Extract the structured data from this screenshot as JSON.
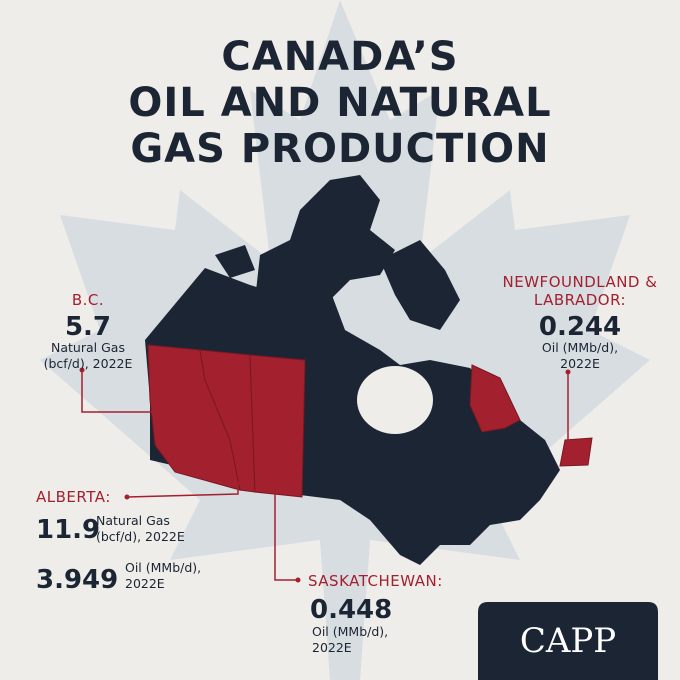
{
  "header": {
    "title_lines": [
      "CANADA’S",
      "OIL AND NATURAL",
      "GAS PRODUCTION"
    ]
  },
  "regions": [
    {
      "name": [
        "B.C."
      ],
      "stats": [
        {
          "value": "5.7",
          "unit": [
            "Natural Gas",
            "(bcf/d), 2022E"
          ]
        }
      ]
    },
    {
      "name": [
        "NEWFOUNDLAND &",
        "LABRADOR:"
      ],
      "stats": [
        {
          "value": "0.244",
          "unit": [
            "Oil (MMb/d),",
            "2022E"
          ]
        }
      ]
    },
    {
      "name": [
        "ALBERTA:"
      ],
      "stats": [
        {
          "value": "11.9",
          "unit": [
            "Natural Gas",
            "(bcf/d), 2022E"
          ]
        },
        {
          "value": "3.949",
          "unit": [
            "Oil (MMb/d),",
            "2022E"
          ]
        }
      ]
    },
    {
      "name": [
        "SASKATCHEWAN:"
      ],
      "stats": [
        {
          "value": "0.448",
          "unit": [
            "Oil (MMb/d),",
            "2022E"
          ]
        }
      ]
    }
  ],
  "footer": {
    "logo": "CAPP"
  }
}
